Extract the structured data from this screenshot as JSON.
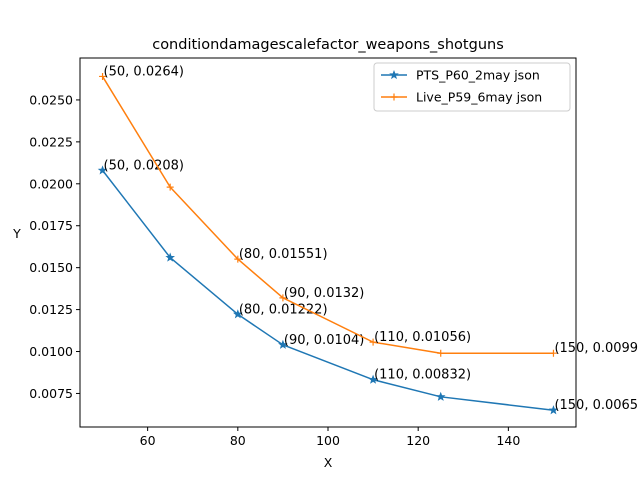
{
  "chart_data": {
    "type": "line",
    "title": "conditiondamagescalefactor_weapons_shotguns",
    "xlabel": "X",
    "ylabel": "Y",
    "xlim": [
      45,
      155
    ],
    "ylim": [
      0.0055,
      0.0275
    ],
    "xticks": [
      60,
      80,
      100,
      120,
      140
    ],
    "yticks": [
      0.0075,
      0.01,
      0.0125,
      0.015,
      0.0175,
      0.02,
      0.0225,
      0.025
    ],
    "xtick_labels": [
      "60",
      "80",
      "100",
      "120",
      "140"
    ],
    "ytick_labels": [
      "0.0075",
      "0.0100",
      "0.0125",
      "0.0150",
      "0.0175",
      "0.0200",
      "0.0225",
      "0.0250"
    ],
    "grid": false,
    "legend_position": "top-right",
    "series": [
      {
        "name": "PTS_P60_2may json",
        "color": "#1f77b4",
        "marker": "star",
        "x": [
          50,
          65,
          80,
          90,
          110,
          125,
          150
        ],
        "y": [
          0.0208,
          0.0156,
          0.01222,
          0.0104,
          0.00832,
          0.0073,
          0.0065
        ],
        "annotations": [
          {
            "x": 50,
            "y": 0.0208,
            "text": "(50, 0.0208)"
          },
          {
            "x": 80,
            "y": 0.01222,
            "text": "(80, 0.01222)"
          },
          {
            "x": 90,
            "y": 0.0104,
            "text": "(90, 0.0104)"
          },
          {
            "x": 110,
            "y": 0.00832,
            "text": "(110, 0.00832)"
          },
          {
            "x": 150,
            "y": 0.0065,
            "text": "(150, 0.0065"
          }
        ]
      },
      {
        "name": "Live_P59_6may json",
        "color": "#ff7f0e",
        "marker": "plus",
        "x": [
          50,
          65,
          80,
          90,
          110,
          125,
          150
        ],
        "y": [
          0.0264,
          0.0198,
          0.01551,
          0.0132,
          0.01056,
          0.0099,
          0.0099
        ],
        "annotations": [
          {
            "x": 50,
            "y": 0.0264,
            "text": "(50, 0.0264)"
          },
          {
            "x": 80,
            "y": 0.01551,
            "text": "(80, 0.01551)"
          },
          {
            "x": 90,
            "y": 0.0132,
            "text": "(90, 0.0132)"
          },
          {
            "x": 110,
            "y": 0.01056,
            "text": "(110, 0.01056)"
          },
          {
            "x": 150,
            "y": 0.0099,
            "text": "(150, 0.0099"
          }
        ]
      }
    ]
  }
}
